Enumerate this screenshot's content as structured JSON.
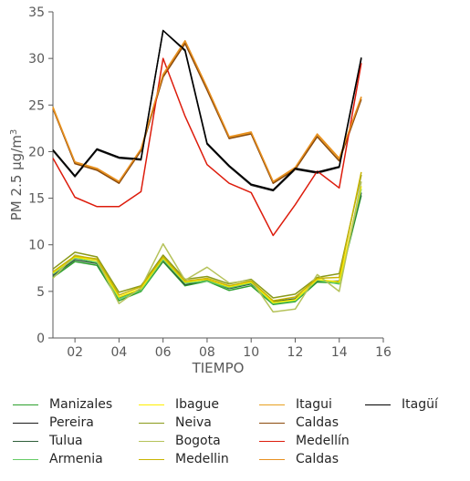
{
  "chart_data": {
    "type": "line",
    "title": "",
    "xlabel": "TIEMPO",
    "ylabel": "PM 2.5 μg/m³",
    "xlim": [
      1,
      16
    ],
    "ylim": [
      0,
      35
    ],
    "x_ticks": [
      2,
      4,
      6,
      8,
      10,
      12,
      14,
      16
    ],
    "x_tick_labels": [
      "02",
      "04",
      "06",
      "08",
      "10",
      "12",
      "14",
      "16"
    ],
    "y_ticks": [
      0,
      5,
      10,
      15,
      20,
      25,
      30,
      35
    ],
    "y_tick_labels": [
      "0",
      "5",
      "10",
      "15",
      "20",
      "25",
      "30",
      "35"
    ],
    "grid": false,
    "legend_position": "bottom",
    "x": [
      1,
      2,
      3,
      4,
      5,
      6,
      7,
      8,
      9,
      10,
      11,
      12,
      13,
      14,
      15
    ],
    "series": [
      {
        "name": "Manizales",
        "color": "#2ca02c",
        "values": [
          6.5,
          8.2,
          7.8,
          4.0,
          5.0,
          8.2,
          5.6,
          6.1,
          5.1,
          5.6,
          3.6,
          3.9,
          6.0,
          5.9,
          15.3
        ]
      },
      {
        "name": "Pereira",
        "color": "#1a1a1a",
        "values": [
          20.1,
          17.3,
          20.2,
          19.3,
          19.1,
          33.0,
          30.8,
          20.8,
          18.4,
          16.4,
          15.8,
          18.1,
          17.7,
          18.3,
          30.0
        ]
      },
      {
        "name": "Tulua",
        "color": "#2e5e3a",
        "values": [
          6.7,
          8.4,
          8.0,
          4.3,
          5.2,
          8.3,
          5.7,
          6.2,
          5.3,
          5.8,
          3.9,
          4.2,
          6.1,
          6.1,
          15.6
        ]
      },
      {
        "name": "Armenia",
        "color": "#66cc66",
        "values": [
          6.9,
          8.6,
          8.1,
          4.2,
          5.1,
          8.4,
          5.9,
          6.1,
          5.4,
          5.9,
          3.7,
          4.0,
          6.2,
          5.8,
          16.0
        ]
      },
      {
        "name": "Ibague",
        "color": "#ffee00",
        "values": [
          7.0,
          8.7,
          8.3,
          4.4,
          5.3,
          8.6,
          6.0,
          6.3,
          5.5,
          6.0,
          3.8,
          4.1,
          6.3,
          6.0,
          16.3
        ]
      },
      {
        "name": "Neiva",
        "color": "#8a9a1a",
        "values": [
          7.4,
          9.2,
          8.7,
          4.9,
          5.6,
          8.9,
          6.3,
          6.6,
          5.8,
          6.3,
          4.3,
          4.7,
          6.5,
          6.9,
          17.5
        ]
      },
      {
        "name": "Bogota",
        "color": "#b5c25a",
        "values": [
          6.4,
          8.9,
          8.4,
          3.7,
          5.4,
          10.1,
          6.2,
          7.6,
          5.9,
          6.2,
          2.8,
          3.1,
          6.8,
          5.0,
          16.8
        ]
      },
      {
        "name": "Medellin",
        "color": "#c8b400",
        "values": [
          7.1,
          8.8,
          8.5,
          4.6,
          5.5,
          8.7,
          6.1,
          6.4,
          5.6,
          6.1,
          4.0,
          4.4,
          6.4,
          6.5,
          17.8
        ]
      },
      {
        "name": "Itagui",
        "color": "#e8a020",
        "values": [
          24.8,
          18.8,
          18.1,
          16.7,
          20.2,
          28.2,
          31.8,
          26.8,
          21.5,
          22.0,
          16.7,
          18.2,
          21.8,
          19.2,
          25.8
        ]
      },
      {
        "name": "Caldas",
        "color": "#8b4a0c",
        "values": [
          24.6,
          18.7,
          18.0,
          16.6,
          20.1,
          28.0,
          31.6,
          26.6,
          21.4,
          21.9,
          16.6,
          18.1,
          21.6,
          19.0,
          25.6
        ]
      },
      {
        "name": "Medellín",
        "color": "#dd1c0c",
        "values": [
          19.3,
          15.1,
          14.1,
          14.1,
          15.7,
          30.0,
          23.8,
          18.6,
          16.6,
          15.6,
          11.0,
          14.3,
          17.9,
          16.1,
          29.5
        ]
      },
      {
        "name": "Caldas",
        "color": "#e89020",
        "values": [
          24.7,
          18.9,
          18.2,
          16.8,
          20.3,
          28.3,
          31.9,
          26.9,
          21.6,
          22.1,
          16.8,
          18.3,
          21.9,
          19.3,
          25.9
        ]
      },
      {
        "name": "Itagüí",
        "color": "#000000",
        "values": [
          20.2,
          17.4,
          20.3,
          19.4,
          19.2,
          33.0,
          30.9,
          20.9,
          18.5,
          16.5,
          15.9,
          18.2,
          17.8,
          18.4,
          30.1
        ]
      }
    ]
  }
}
